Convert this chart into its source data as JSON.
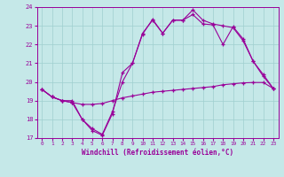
{
  "bg_color": "#c5e8e8",
  "grid_color": "#9fcfcf",
  "line_color": "#990099",
  "xlabel": "Windchill (Refroidissement éolien,°C)",
  "xlim_min": 0,
  "xlim_max": 23,
  "ylim_min": 17,
  "ylim_max": 24,
  "xticks": [
    0,
    1,
    2,
    3,
    4,
    5,
    6,
    7,
    8,
    9,
    10,
    11,
    12,
    13,
    14,
    15,
    16,
    17,
    18,
    19,
    20,
    21,
    22,
    23
  ],
  "yticks": [
    17,
    18,
    19,
    20,
    21,
    22,
    23,
    24
  ],
  "line1_x": [
    0,
    1,
    2,
    3,
    4,
    5,
    6,
    7,
    8,
    9,
    10,
    11,
    12,
    13,
    14,
    15,
    16,
    17,
    18,
    19,
    20,
    21,
    22,
    23
  ],
  "line1_y": [
    19.6,
    19.2,
    19.0,
    18.9,
    18.8,
    18.8,
    18.85,
    19.0,
    19.15,
    19.25,
    19.35,
    19.45,
    19.5,
    19.55,
    19.6,
    19.65,
    19.7,
    19.75,
    19.85,
    19.9,
    19.95,
    19.97,
    19.97,
    19.65
  ],
  "line2_x": [
    0,
    1,
    2,
    3,
    4,
    5,
    6,
    7,
    8,
    9,
    10,
    11,
    12,
    13,
    14,
    15,
    16,
    17,
    18,
    19,
    20,
    21,
    22,
    23
  ],
  "line2_y": [
    19.6,
    19.2,
    19.0,
    19.0,
    18.0,
    17.5,
    17.2,
    18.4,
    20.0,
    21.0,
    22.6,
    23.3,
    22.6,
    23.3,
    23.3,
    23.85,
    23.3,
    23.1,
    23.0,
    22.9,
    22.2,
    21.1,
    20.3,
    19.65
  ],
  "line3_x": [
    0,
    1,
    2,
    3,
    4,
    5,
    6,
    7,
    8,
    9,
    10,
    11,
    12,
    13,
    14,
    15,
    16,
    17,
    18,
    19,
    20,
    21,
    22,
    23
  ],
  "line3_y": [
    19.6,
    19.2,
    19.0,
    18.9,
    18.0,
    17.4,
    17.15,
    18.3,
    20.5,
    21.0,
    22.55,
    23.35,
    22.6,
    23.3,
    23.3,
    23.6,
    23.1,
    23.05,
    22.0,
    22.95,
    22.3,
    21.1,
    20.4,
    19.65
  ]
}
